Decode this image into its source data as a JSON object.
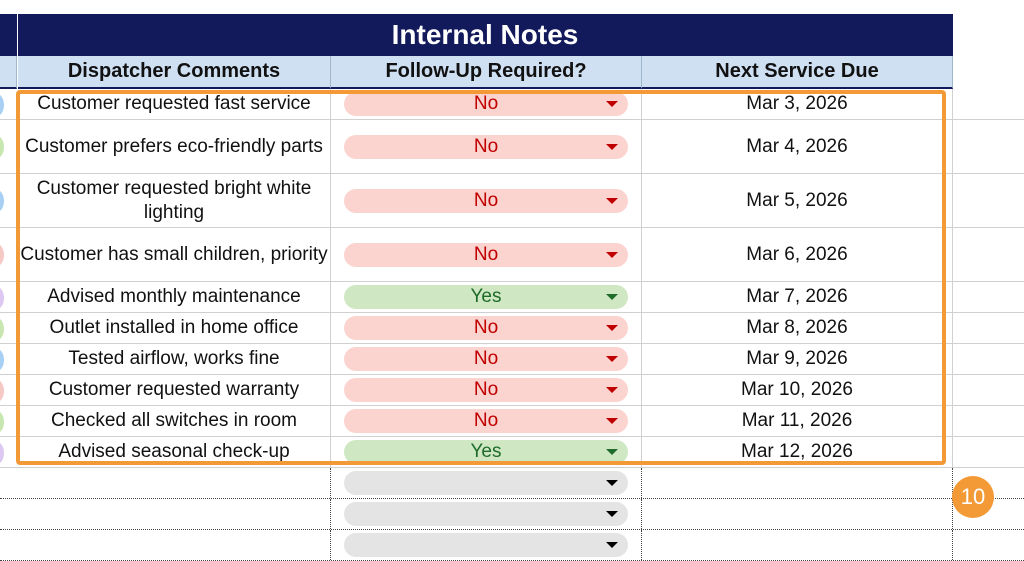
{
  "section_title": "Internal Notes",
  "columns": {
    "comments": "Dispatcher Comments",
    "followup": "Follow-Up Required?",
    "next_service": "Next Service Due"
  },
  "rows": [
    {
      "comment": "Customer requested fast service",
      "followup": "No",
      "date": "Mar 3, 2026",
      "dot_color": "#a8d0f5"
    },
    {
      "comment": "Customer prefers eco-friendly parts",
      "followup": "No",
      "date": "Mar 4, 2026",
      "dot_color": "#c8e6b0"
    },
    {
      "comment": "Customer requested bright white lighting",
      "followup": "No",
      "date": "Mar 5, 2026",
      "dot_color": "#a8d0f5"
    },
    {
      "comment": "Customer has small children, priority",
      "followup": "No",
      "date": "Mar 6, 2026",
      "dot_color": "#f6c9c4"
    },
    {
      "comment": "Advised monthly maintenance",
      "followup": "Yes",
      "date": "Mar 7, 2026",
      "dot_color": "#dcc8f0"
    },
    {
      "comment": "Outlet installed in home office",
      "followup": "No",
      "date": "Mar 8, 2026",
      "dot_color": "#c8e6b0"
    },
    {
      "comment": "Tested airflow, works fine",
      "followup": "No",
      "date": "Mar 9, 2026",
      "dot_color": "#a8d0f5"
    },
    {
      "comment": "Customer requested warranty",
      "followup": "No",
      "date": "Mar 10, 2026",
      "dot_color": "#f6c9c4"
    },
    {
      "comment": "Checked all switches in room",
      "followup": "No",
      "date": "Mar 11, 2026",
      "dot_color": "#c8e6b0"
    },
    {
      "comment": "Advised seasonal check-up",
      "followup": "Yes",
      "date": "Mar 12, 2026",
      "dot_color": "#dcc8f0"
    }
  ],
  "empty_rows": 3,
  "selection_badge": "10",
  "colors": {
    "banner": "#121a5c",
    "header_fill": "#cfe0f3",
    "no_fill": "#fbd3cf",
    "no_text": "#c00000",
    "yes_fill": "#cfe8c3",
    "yes_text": "#1f6b2a",
    "highlight": "#f39a36"
  }
}
